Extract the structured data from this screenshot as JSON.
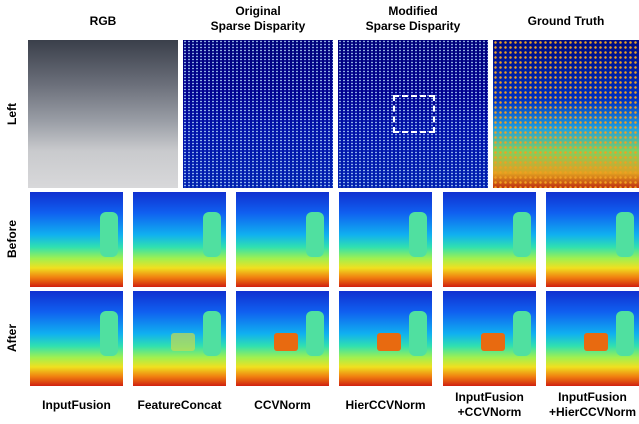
{
  "columns": [
    {
      "lines": [
        "RGB"
      ]
    },
    {
      "lines": [
        "Original",
        "Sparse Disparity"
      ]
    },
    {
      "lines": [
        "Modified",
        "Sparse Disparity"
      ]
    },
    {
      "lines": [
        "Ground Truth"
      ]
    }
  ],
  "rows": [
    "Left",
    "Before",
    "After"
  ],
  "methods": [
    {
      "lines": [
        "InputFusion"
      ]
    },
    {
      "lines": [
        "FeatureConcat"
      ]
    },
    {
      "lines": [
        "CCVNorm"
      ]
    },
    {
      "lines": [
        "HierCCVNorm"
      ]
    },
    {
      "lines": [
        "InputFusion",
        "+CCVNorm"
      ]
    },
    {
      "lines": [
        "InputFusion",
        "+HierCCVNorm"
      ]
    }
  ]
}
